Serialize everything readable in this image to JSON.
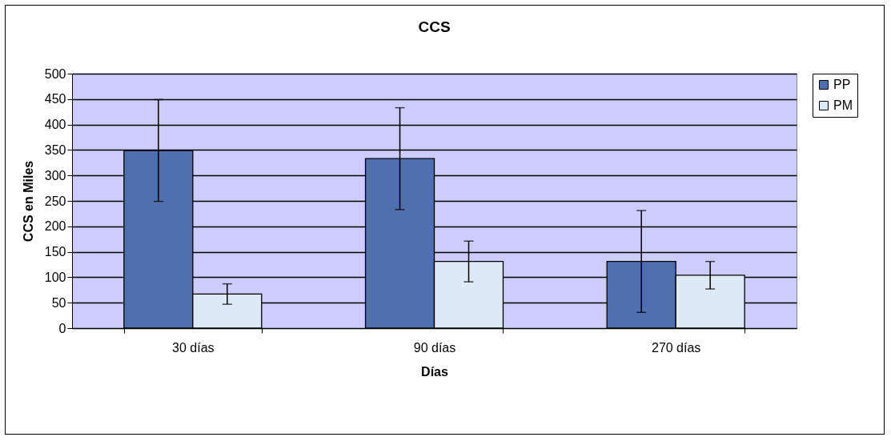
{
  "chart_data": {
    "type": "bar",
    "title": "CCS",
    "xlabel": "Días",
    "ylabel": "CCS en Miles",
    "categories": [
      "30 días",
      "90 días",
      "270 días"
    ],
    "series": [
      {
        "name": "PP",
        "color": "#4f6fae",
        "values": [
          349,
          333,
          131
        ],
        "errors": [
          100,
          100,
          100
        ]
      },
      {
        "name": "PM",
        "color": "#dde9f5",
        "values": [
          67,
          131,
          104
        ],
        "errors": [
          20,
          40,
          27
        ]
      }
    ],
    "ylim": [
      0,
      500
    ],
    "yticks": [
      0,
      50,
      100,
      150,
      200,
      250,
      300,
      350,
      400,
      450,
      500
    ],
    "grid": "y",
    "legend": "right"
  }
}
